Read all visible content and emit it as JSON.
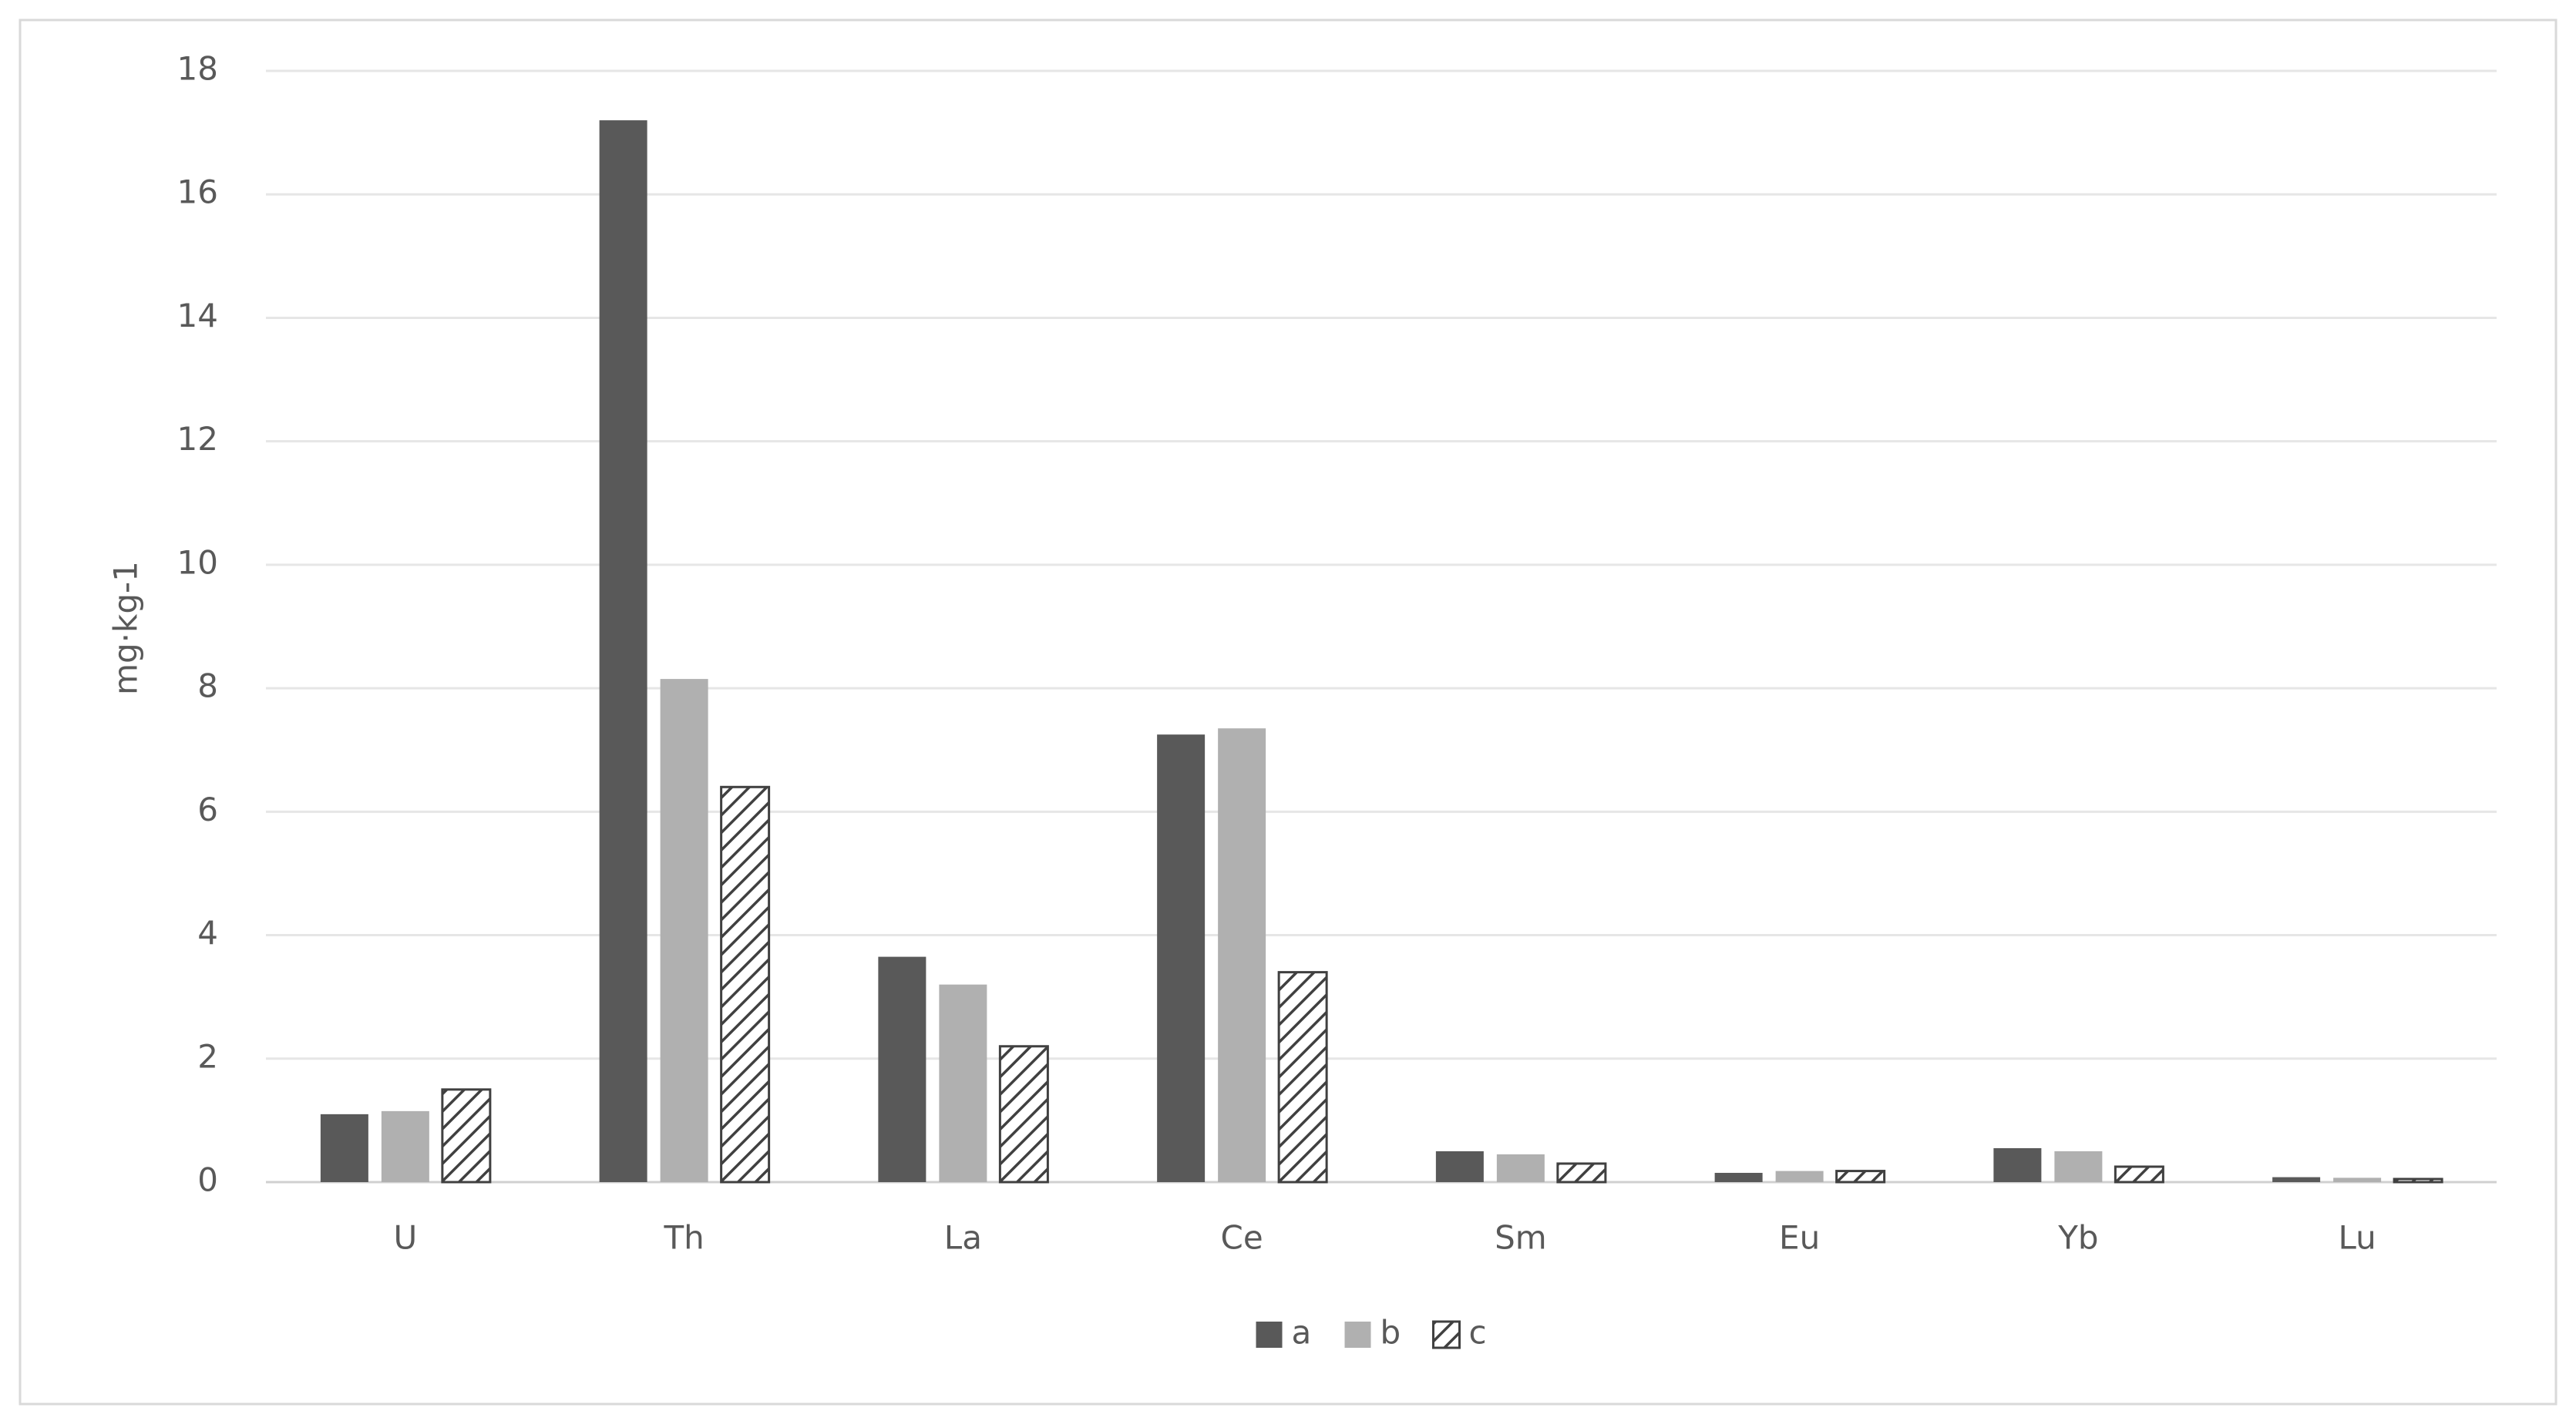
{
  "chart_data": {
    "type": "bar",
    "y_label": "mg·kg-1",
    "categories": [
      "U",
      "Th",
      "La",
      "Ce",
      "Sm",
      "Eu",
      "Yb",
      "Lu"
    ],
    "series": [
      {
        "name": "a",
        "color": "#595959",
        "values": [
          1.1,
          17.2,
          3.65,
          7.25,
          0.5,
          0.15,
          0.55,
          0.08
        ]
      },
      {
        "name": "b",
        "color": "#b0b0b0",
        "values": [
          1.15,
          8.15,
          3.2,
          7.35,
          0.45,
          0.18,
          0.5,
          0.07
        ]
      },
      {
        "name": "c",
        "color": "#404040",
        "pattern": "hatch",
        "values": [
          1.5,
          6.4,
          2.2,
          3.4,
          0.3,
          0.18,
          0.25,
          0.05
        ]
      }
    ],
    "ylim": [
      0,
      18
    ],
    "yticks": [
      0,
      2,
      4,
      6,
      8,
      10,
      12,
      14,
      16,
      18
    ],
    "grid": true,
    "legend": "bottom"
  }
}
